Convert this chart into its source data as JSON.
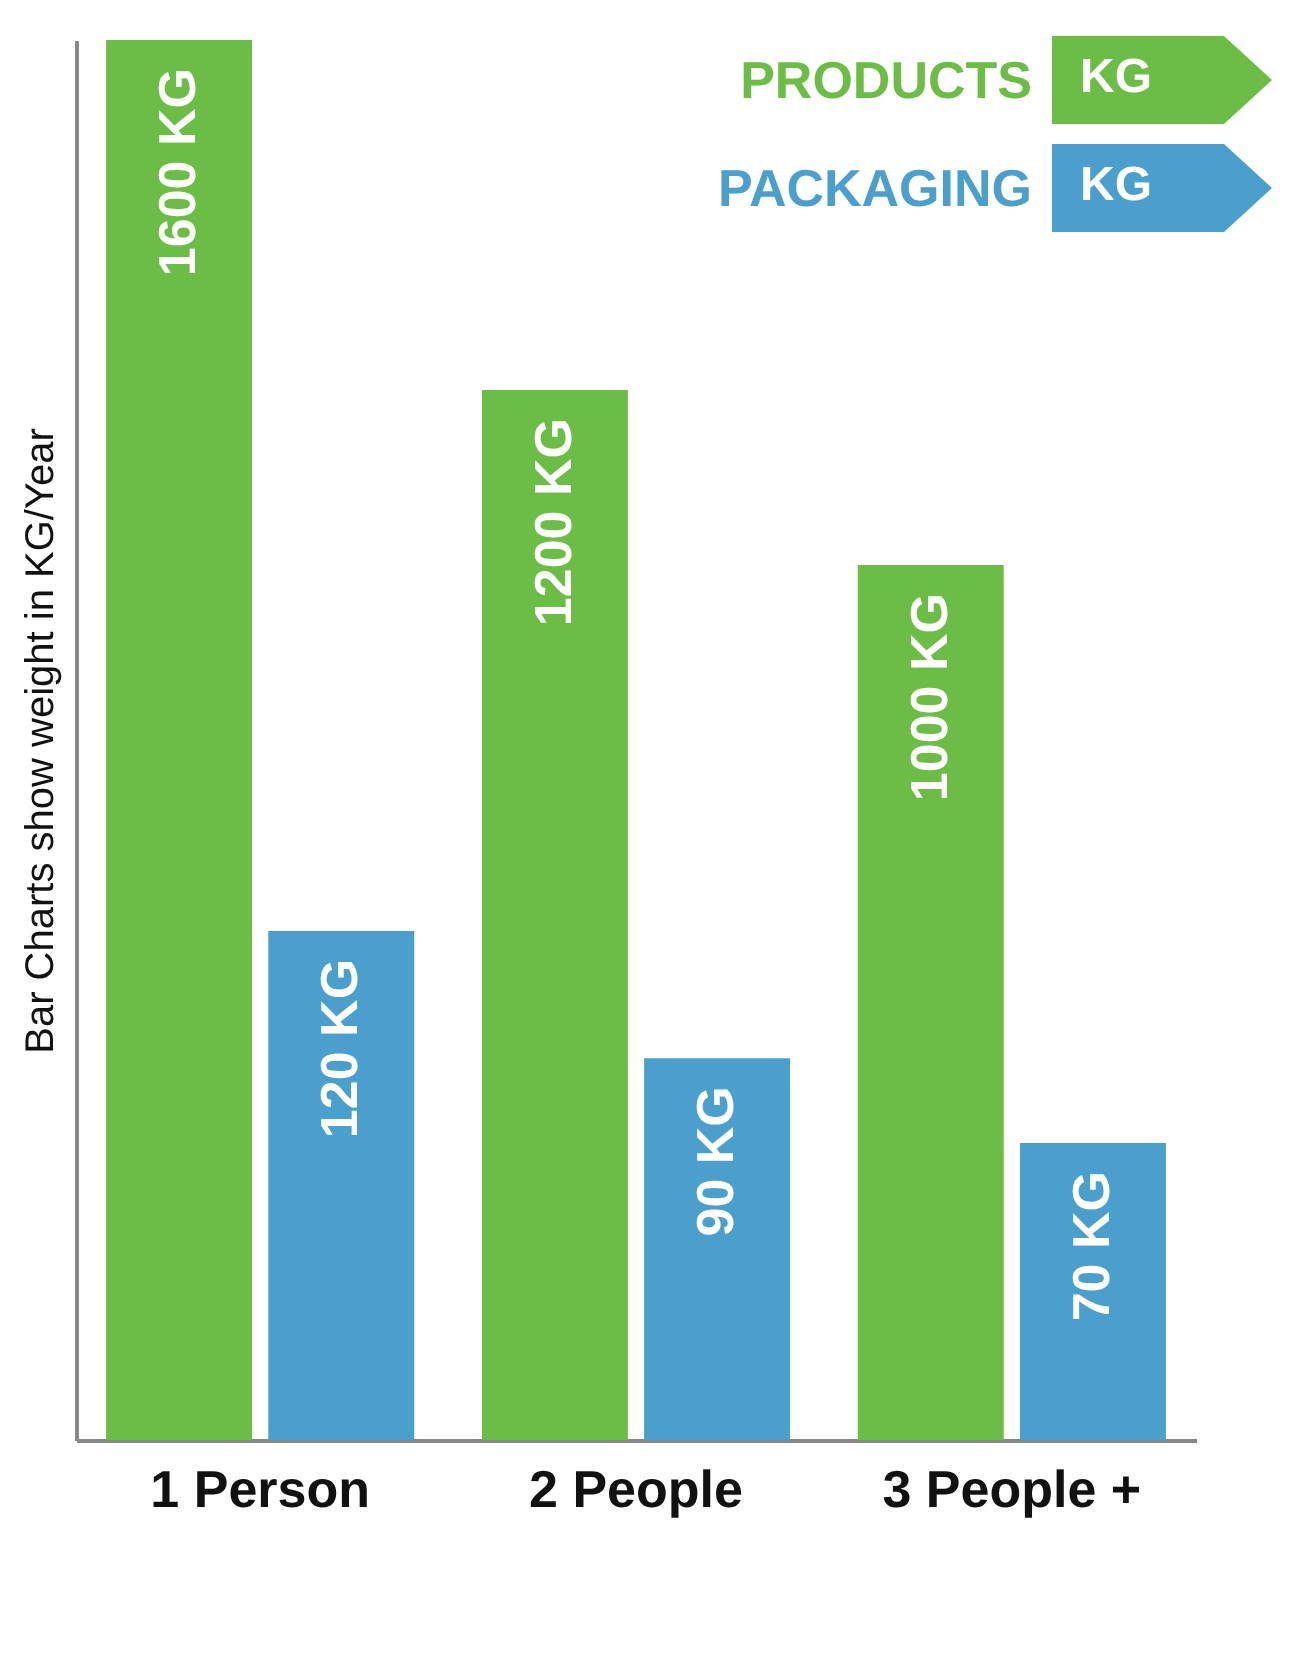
{
  "chart_data": {
    "type": "bar",
    "ylabel": "Bar Charts show weight in KG/Year",
    "categories": [
      "1 Person",
      "2 People",
      "3 People +"
    ],
    "series": [
      {
        "name": "PRODUCTS",
        "color": "#6cbd45",
        "values": [
          1600,
          1200,
          1000
        ],
        "value_labels": [
          "1600 KG",
          "1200 KG",
          "1000 KG"
        ]
      },
      {
        "name": "PACKAGING",
        "color": "#4a9fcc",
        "values": [
          120,
          90,
          70
        ],
        "value_labels": [
          "120 KG",
          "90 KG",
          "70 KG"
        ],
        "axis": "y2"
      }
    ],
    "annotations": [
      "KG"
    ],
    "legend": "top right",
    "tick_labels": "x",
    "grid": false
  }
}
